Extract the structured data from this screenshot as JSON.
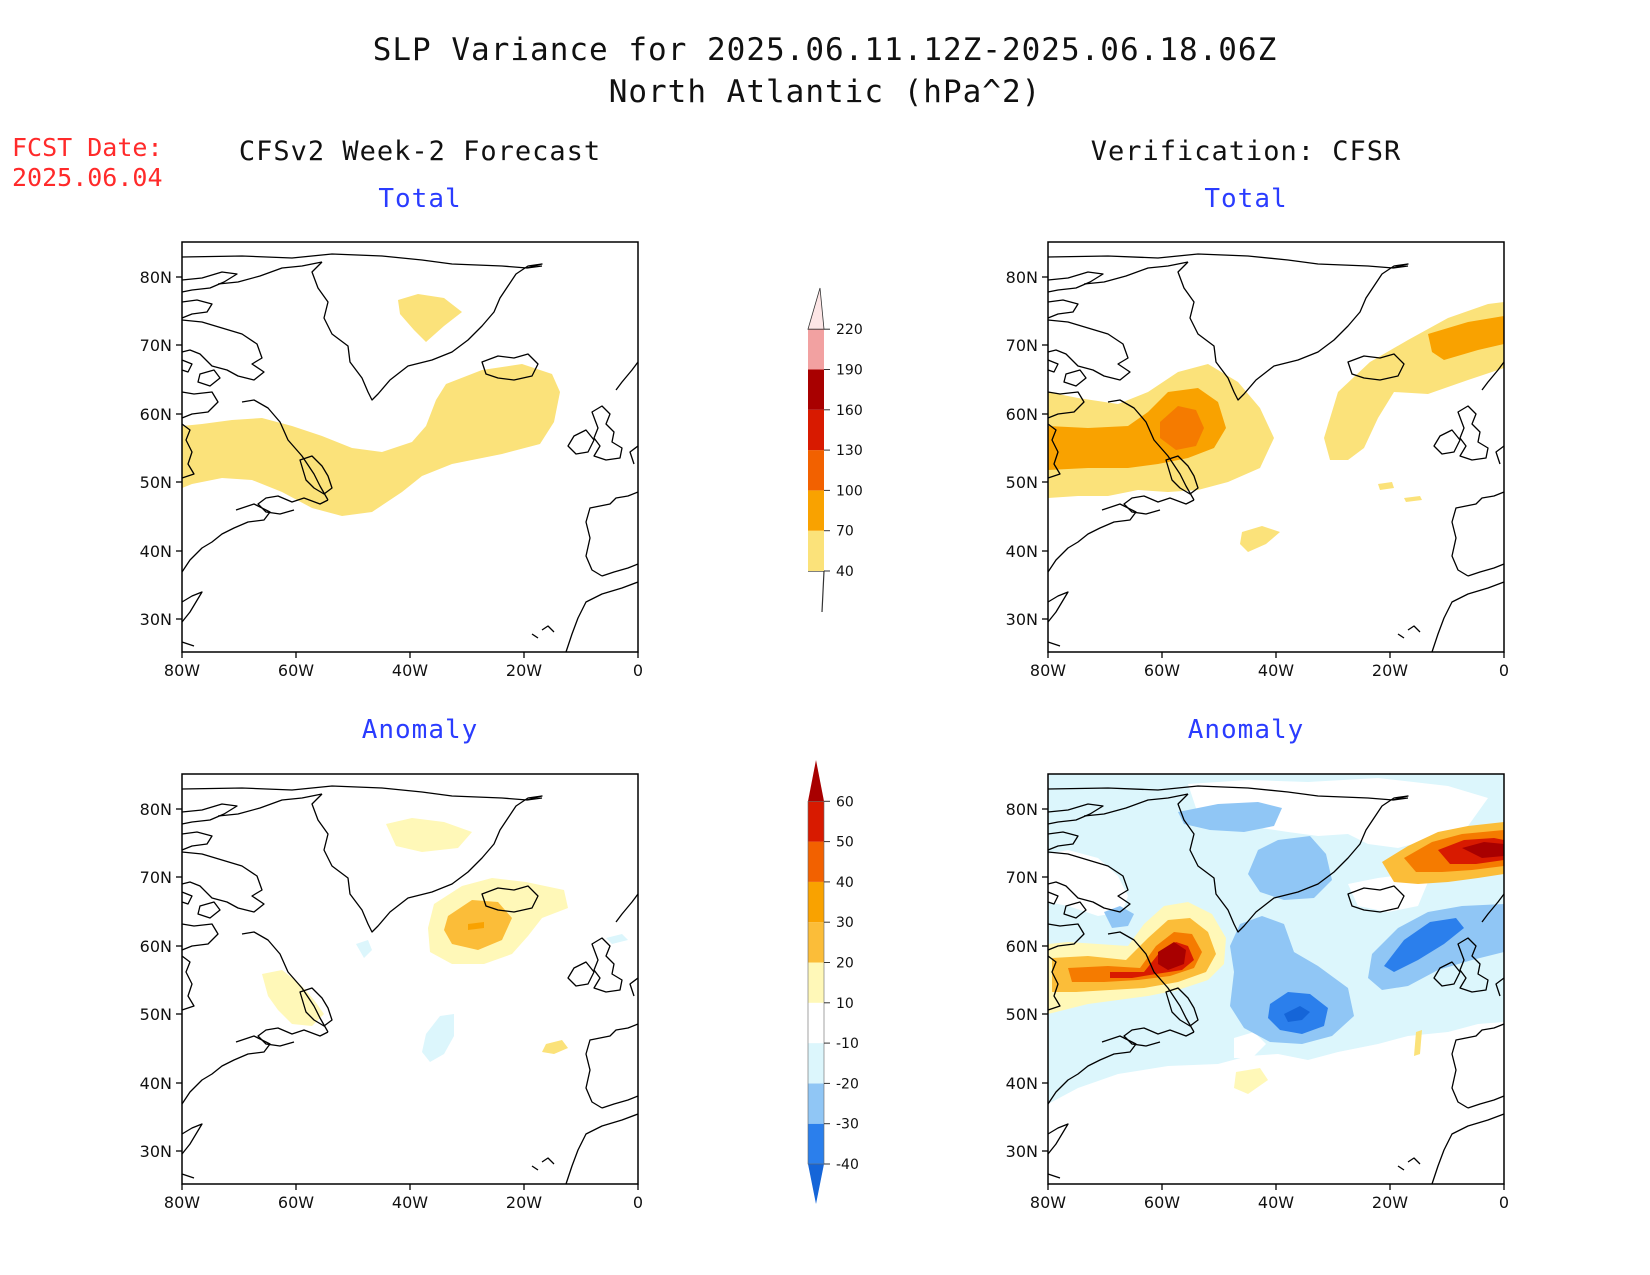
{
  "title": {
    "line1": "SLP Variance for 2025.06.11.12Z-2025.06.18.06Z",
    "line2": "North Atlantic (hPa^2)"
  },
  "fcst": {
    "label": "FCST Date:",
    "date": "2025.06.04"
  },
  "columns": {
    "left": "CFSv2 Week-2 Forecast",
    "right": "Verification: CFSR"
  },
  "panels": {
    "fc_total": "Total",
    "ver_total": "Total",
    "fc_anom": "Anomaly",
    "ver_anom": "Anomaly"
  },
  "axes": {
    "lat_labels": [
      "80N",
      "70N",
      "60N",
      "50N",
      "40N",
      "30N"
    ],
    "lon_labels": [
      "80W",
      "60W",
      "40W",
      "20W",
      "0"
    ]
  },
  "colorbars": {
    "total": {
      "labels": [
        "40",
        "70",
        "100",
        "130",
        "160",
        "190",
        "220"
      ],
      "colors": [
        "#fbe27a",
        "#f9a200",
        "#f26100",
        "#d81a00",
        "#a80000",
        "#f2a1a1",
        "#fde6e6"
      ]
    },
    "anomaly": {
      "labels": [
        "-40",
        "-30",
        "-20",
        "-10",
        "10",
        "20",
        "30",
        "40",
        "50",
        "60"
      ],
      "colors": [
        "#1565d8",
        "#2b7fec",
        "#90c6f5",
        "#dcf6fc",
        "#ffffff",
        "#fff8b8",
        "#fbbd39",
        "#f9a200",
        "#f26100",
        "#d81a00",
        "#a80000"
      ]
    }
  }
}
